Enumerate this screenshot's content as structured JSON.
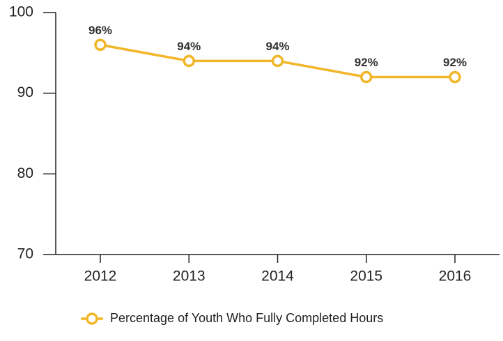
{
  "chart_data": {
    "type": "line",
    "categories": [
      "2012",
      "2013",
      "2014",
      "2015",
      "2016"
    ],
    "series": [
      {
        "name": "Percentage of Youth Who Fully Completed Hours",
        "color": "#f2b62a",
        "values": [
          96,
          94,
          94,
          92,
          92
        ],
        "value_labels": [
          "96%",
          "94%",
          "94%",
          "92%",
          "92%"
        ]
      }
    ],
    "ylim": [
      70,
      100
    ],
    "yticks": [
      70,
      80,
      90,
      100
    ],
    "grid": false,
    "legend": "bottom"
  }
}
